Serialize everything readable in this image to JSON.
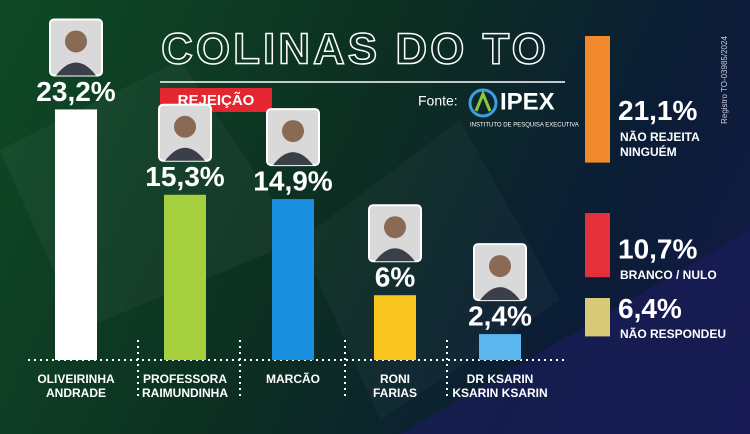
{
  "chart_data": [
    {
      "type": "bar",
      "title": "COLINAS DO TO",
      "subtitle": "REJEIÇÃO",
      "source_label": "Fonte:",
      "source": "IPEX",
      "source_caption": "INSTITUTO DE PESQUISA EXECUTIVA",
      "registration": "Registro TO-03985/2024",
      "categories": [
        "OLIVEIRINHA\nANDRADE",
        "PROFESSORA\nRAIMUNDINHA",
        "MARCÃO",
        "RONI\nFARIAS",
        "DR KSARIN\nKSARIN KSARIN"
      ],
      "values": [
        23.2,
        15.3,
        14.9,
        6,
        2.4
      ],
      "value_labels": [
        "23,2%",
        "15,3%",
        "14,9%",
        "6%",
        "2,4%"
      ],
      "colors": [
        "#ffffff",
        "#a6cf3e",
        "#1b8fdf",
        "#f7c51e",
        "#5cb6ee"
      ]
    },
    {
      "type": "side-bar",
      "categories": [
        "NÃO REJEITA\nNINGUÉM",
        "BRANCO / NULO",
        "NÃO RESPONDEU"
      ],
      "values": [
        21.1,
        10.7,
        6.4
      ],
      "value_labels": [
        "21,1%",
        "10,7%",
        "6,4%"
      ],
      "colors": [
        "#f08a2c",
        "#e5303a",
        "#d8c978"
      ]
    }
  ]
}
